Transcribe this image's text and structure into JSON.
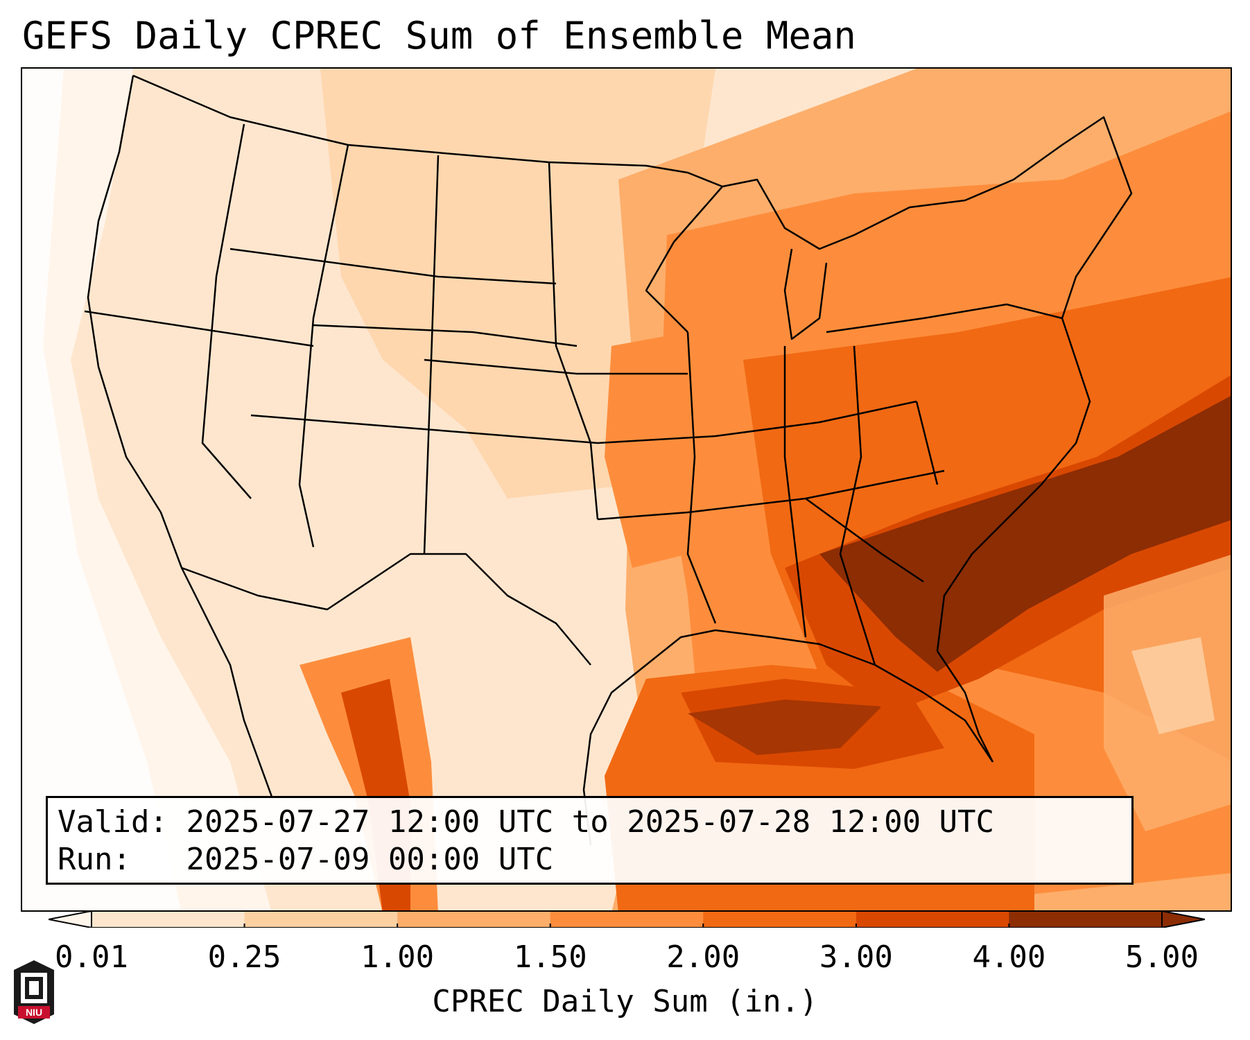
{
  "title": "GEFS Daily CPREC Sum of Ensemble Mean",
  "valid_label": "Valid:",
  "valid_value": "2025-07-27 12:00 UTC to 2025-07-28 12:00 UTC",
  "run_label": "Run:",
  "run_value": "2025-07-09 00:00 UTC",
  "colorbar": {
    "title": "CPREC Daily Sum (in.)",
    "ticks": [
      "0.01",
      "0.25",
      "1.00",
      "1.50",
      "2.00",
      "3.00",
      "4.00",
      "5.00"
    ],
    "colors": [
      "#fff5eb",
      "#fee6ce",
      "#fdd0a2",
      "#fdae6b",
      "#fd8d3c",
      "#f16913",
      "#d94801",
      "#8c2d04"
    ],
    "extend": "both"
  },
  "logo": {
    "icon": "niu-logo-icon",
    "text": "NIU"
  },
  "map": {
    "projection": "Lambert conformal CONUS",
    "field": "CPREC daily sum, ensemble mean",
    "heaviest_region": "Tennessee Valley to Carolinas and offshore Atlantic"
  }
}
